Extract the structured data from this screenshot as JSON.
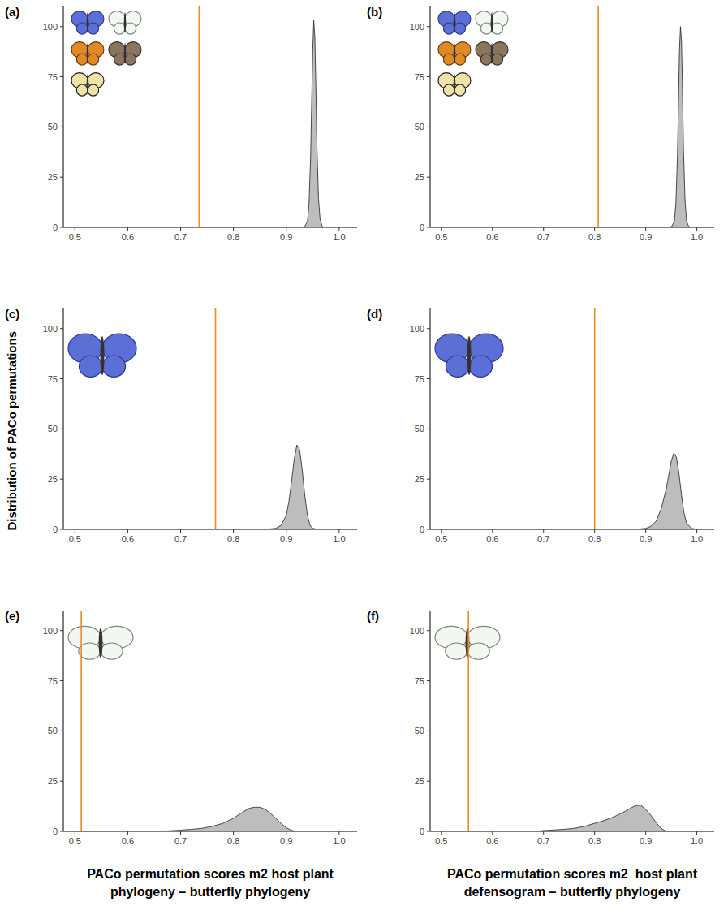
{
  "chart_data": [
    {
      "type": "area",
      "label": "(a)",
      "color": "#bdbdbd",
      "grid": false,
      "x": [
        0.93,
        0.935,
        0.94,
        0.943,
        0.946,
        0.948,
        0.95,
        0.952,
        0.954,
        0.956,
        0.958,
        0.961,
        0.964,
        0.968,
        0.972
      ],
      "values": [
        0,
        0.5,
        3,
        12,
        35,
        62,
        88,
        103,
        95,
        70,
        40,
        14,
        4,
        0.5,
        0
      ],
      "reference_line": {
        "x": 0.735,
        "color": "#ef8a1e"
      },
      "xlim": [
        0.478,
        1.034
      ],
      "ylim": [
        0,
        110
      ],
      "xticks": [
        0.5,
        0.6,
        0.7,
        0.8,
        0.9,
        {
          "value": 1,
          "label": "1.0"
        }
      ],
      "yticks": [
        0,
        25,
        50,
        75,
        100
      ]
    },
    {
      "type": "area",
      "label": "(b)",
      "color": "#bdbdbd",
      "grid": false,
      "x": [
        0.946,
        0.951,
        0.956,
        0.959,
        0.962,
        0.964,
        0.966,
        0.968,
        0.97,
        0.972,
        0.974,
        0.977,
        0.98,
        0.984,
        0.988
      ],
      "values": [
        0,
        0.5,
        3,
        12,
        35,
        62,
        88,
        100,
        93,
        68,
        38,
        13,
        3,
        0.5,
        0
      ],
      "reference_line": {
        "x": 0.807,
        "color": "#ef8a1e"
      },
      "xlim": [
        0.478,
        1.034
      ],
      "ylim": [
        0,
        110
      ],
      "xticks": [
        0.5,
        0.6,
        0.7,
        0.8,
        0.9,
        {
          "value": 1,
          "label": "1.0"
        }
      ],
      "yticks": [
        0,
        25,
        50,
        75,
        100
      ]
    },
    {
      "type": "area",
      "label": "(c)",
      "color": "#bdbdbd",
      "grid": false,
      "ylabel": "Distribution of PACo permutations",
      "x": [
        0.86,
        0.88,
        0.89,
        0.9,
        0.905,
        0.91,
        0.915,
        0.92,
        0.925,
        0.93,
        0.935,
        0.94,
        0.945,
        0.95,
        0.96
      ],
      "values": [
        0,
        0.5,
        2,
        7,
        14,
        24,
        35,
        42,
        40,
        30,
        17,
        7,
        2,
        0.5,
        0
      ],
      "reference_line": {
        "x": 0.766,
        "color": "#ef8a1e"
      },
      "xlim": [
        0.478,
        1.034
      ],
      "ylim": [
        0,
        110
      ],
      "xticks": [
        0.5,
        0.6,
        0.7,
        0.8,
        0.9,
        {
          "value": 1,
          "label": "1.0"
        }
      ],
      "yticks": [
        0,
        25,
        50,
        75,
        100
      ]
    },
    {
      "type": "area",
      "label": "(d)",
      "color": "#bdbdbd",
      "grid": false,
      "x": [
        0.88,
        0.9,
        0.91,
        0.92,
        0.93,
        0.94,
        0.945,
        0.95,
        0.955,
        0.96,
        0.965,
        0.97,
        0.975,
        0.98,
        0.99,
        1.0
      ],
      "values": [
        0,
        0.5,
        1.5,
        4,
        10,
        20,
        27,
        34,
        38,
        36,
        28,
        17,
        8,
        3,
        0.5,
        0
      ],
      "reference_line": {
        "x": 0.8,
        "color": "#ef8a1e"
      },
      "xlim": [
        0.478,
        1.034
      ],
      "ylim": [
        0,
        110
      ],
      "xticks": [
        0.5,
        0.6,
        0.7,
        0.8,
        0.9,
        {
          "value": 1,
          "label": "1.0"
        }
      ],
      "yticks": [
        0,
        25,
        50,
        75,
        100
      ]
    },
    {
      "type": "area",
      "label": "(e)",
      "color": "#bdbdbd",
      "grid": false,
      "xlabel": "PACo permutation scores m2 host plant phylogeny – butterfly phylogeny",
      "x": [
        0.66,
        0.68,
        0.7,
        0.72,
        0.74,
        0.76,
        0.78,
        0.8,
        0.82,
        0.83,
        0.84,
        0.85,
        0.86,
        0.87,
        0.88,
        0.89,
        0.9,
        0.91,
        0.92
      ],
      "values": [
        0,
        0.3,
        0.6,
        1,
        1.5,
        2.5,
        4,
        6.5,
        10,
        11.5,
        12,
        12,
        11,
        9,
        6.5,
        4,
        1.8,
        0.5,
        0
      ],
      "reference_line": {
        "x": 0.512,
        "color": "#ef8a1e"
      },
      "xlim": [
        0.478,
        1.034
      ],
      "ylim": [
        0,
        110
      ],
      "xticks": [
        0.5,
        0.6,
        0.7,
        0.8,
        0.9,
        {
          "value": 1,
          "label": "1.0"
        }
      ],
      "yticks": [
        0,
        25,
        50,
        75,
        100
      ]
    },
    {
      "type": "area",
      "label": "(f)",
      "color": "#bdbdbd",
      "grid": false,
      "xlabel": "PACo permutation scores m2  host plant defensogram – butterfly phylogeny",
      "x": [
        0.68,
        0.7,
        0.72,
        0.74,
        0.76,
        0.78,
        0.8,
        0.82,
        0.84,
        0.86,
        0.87,
        0.88,
        0.89,
        0.9,
        0.91,
        0.92,
        0.93,
        0.94
      ],
      "values": [
        0,
        0.4,
        0.7,
        1,
        1.5,
        2.5,
        4,
        5.5,
        7.5,
        10,
        11.5,
        12.8,
        13,
        11,
        8,
        4.5,
        1.5,
        0
      ],
      "reference_line": {
        "x": 0.553,
        "color": "#ef8a1e"
      },
      "xlim": [
        0.478,
        1.034
      ],
      "ylim": [
        0,
        110
      ],
      "xticks": [
        0.5,
        0.6,
        0.7,
        0.8,
        0.9,
        {
          "value": 1,
          "label": "1.0"
        }
      ],
      "yticks": [
        0,
        25,
        50,
        75,
        100
      ]
    }
  ]
}
